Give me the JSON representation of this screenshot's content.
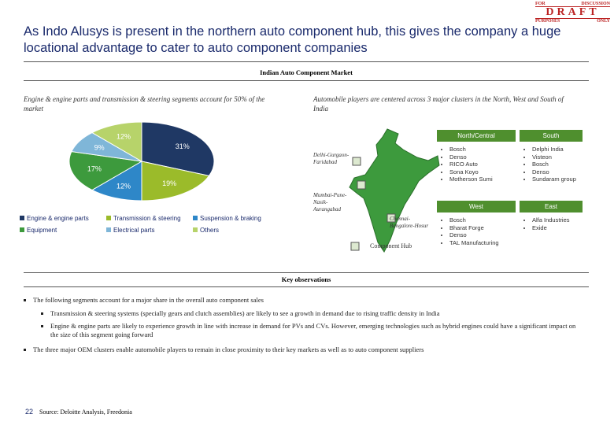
{
  "stamp": {
    "top_left": "FOR",
    "top_right": "DISCUSSION",
    "main": "DRAFT",
    "bottom_left": "PURPOSES",
    "bottom_right": "ONLY"
  },
  "header": {
    "title": "As Indo Alusys is present in the northern auto component hub, this gives the company a huge locational advantage to cater to auto component companies"
  },
  "section_title": "Indian Auto Component Market",
  "left_caption": "Engine & engine parts and transmission & steering segments account for 50% of the market",
  "right_caption": "Automobile players are centered across 3 major clusters in the North, West and South of India",
  "chart_data": {
    "type": "pie",
    "categories": [
      "Engine & engine parts",
      "Transmission & steering",
      "Suspension & braking",
      "Equipment",
      "Electrical parts",
      "Others"
    ],
    "values": [
      31,
      19,
      12,
      17,
      9,
      12
    ],
    "value_labels": [
      "31%",
      "19%",
      "12%",
      "17%",
      "9%",
      "12%"
    ],
    "colors": [
      "#1f3864",
      "#9bbb2a",
      "#2e87c8",
      "#3d9a3d",
      "#7fb6d8",
      "#b7d36a"
    ]
  },
  "map": {
    "labels": [
      "Delhi-Gurgaon-Faridabad",
      "Mumbai-Pune-Nasik-Aurangabad",
      "Chennai-Bangalore-Hosur"
    ],
    "legend": "Component Hub"
  },
  "clusters": [
    {
      "name": "North/Central",
      "players": [
        "Bosch",
        "Denso",
        "RICO Auto",
        "Sona Koyo",
        "Motherson Sumi"
      ]
    },
    {
      "name": "South",
      "players": [
        "Delphi India",
        "Visteon",
        "Bosch",
        "Denso",
        "Sundaram group"
      ]
    },
    {
      "name": "West",
      "players": [
        "Bosch",
        "Bharat Forge",
        "Denso",
        "TAL Manufacturing"
      ]
    },
    {
      "name": "East",
      "players": [
        "Alfa Industries",
        "Exide"
      ]
    }
  ],
  "observations": {
    "title": "Key observations",
    "bullets": [
      {
        "text": "The following segments account for a major share in the overall auto component sales",
        "sub": [
          "Transmission & steering systems (specially gears and clutch assemblies) are likely to see a growth in demand due to rising traffic density in India",
          "Engine & engine parts are likely to experience growth in line with increase in demand for PVs and CVs. However, emerging technologies such as hybrid engines could have a significant impact on the size of this segment going forward"
        ]
      },
      {
        "text": "The three major OEM clusters enable automobile players to remain in close proximity to their key markets as well as to auto component suppliers",
        "sub": []
      }
    ]
  },
  "footer": {
    "page": "22",
    "source": "Source: Deloitte Analysis, Freedonia"
  }
}
